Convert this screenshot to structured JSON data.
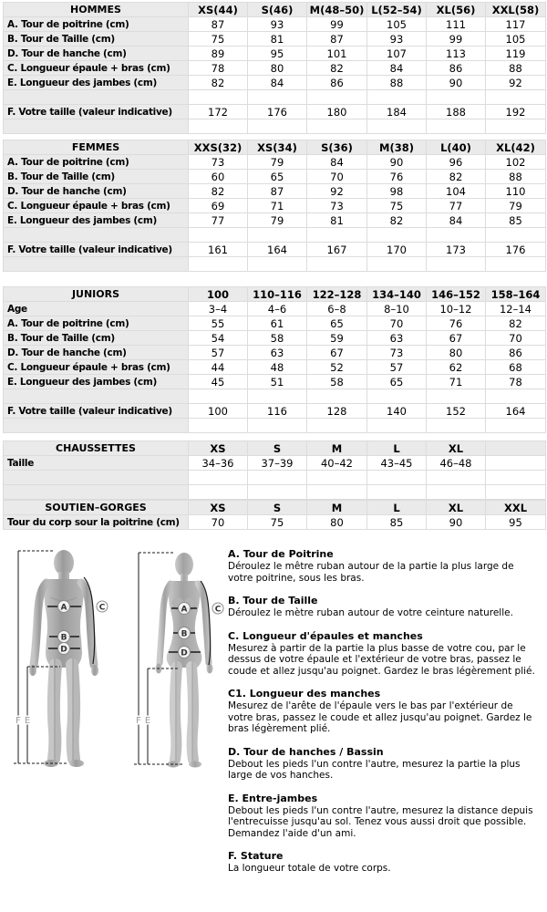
{
  "colors": {
    "header_bg": "#eaeaea",
    "border": "#dcdcdc",
    "text": "#000000"
  },
  "tables": [
    {
      "id": "hommes",
      "header": [
        "HOMMES",
        "XS(44)",
        "S(46)",
        "M(48–50)",
        "L(52–54)",
        "XL(56)",
        "XXL(58)"
      ],
      "rows": [
        {
          "label": "A. Tour de poitrine (cm)",
          "values": [
            "87",
            "93",
            "99",
            "105",
            "111",
            "117"
          ]
        },
        {
          "label": "B. Tour de Taille (cm)",
          "values": [
            "75",
            "81",
            "87",
            "93",
            "99",
            "105"
          ]
        },
        {
          "label": "D. Tour de hanche (cm)",
          "values": [
            "89",
            "95",
            "101",
            "107",
            "113",
            "119"
          ]
        },
        {
          "label": "C. Longueur épaule + bras (cm)",
          "values": [
            "78",
            "80",
            "82",
            "84",
            "86",
            "88"
          ]
        },
        {
          "label": "E. Longueur des jambes (cm)",
          "values": [
            "82",
            "84",
            "86",
            "88",
            "90",
            "92"
          ]
        },
        {
          "label": "",
          "values": [
            "",
            "",
            "",
            "",
            "",
            ""
          ]
        },
        {
          "label": "F. Votre taille (valeur indicative)",
          "values": [
            "172",
            "176",
            "180",
            "184",
            "188",
            "192"
          ]
        },
        {
          "label": "",
          "values": [
            "",
            "",
            "",
            "",
            "",
            ""
          ]
        }
      ]
    },
    {
      "id": "femmes",
      "header": [
        "FEMMES",
        "XXS(32)",
        "XS(34)",
        "S(36)",
        "M(38)",
        "L(40)",
        "XL(42)"
      ],
      "rows": [
        {
          "label": "A. Tour de poitrine (cm)",
          "values": [
            "73",
            "79",
            "84",
            "90",
            "96",
            "102"
          ]
        },
        {
          "label": "B. Tour de Taille (cm)",
          "values": [
            "60",
            "65",
            "70",
            "76",
            "82",
            "88"
          ]
        },
        {
          "label": "D. Tour de hanche (cm)",
          "values": [
            "82",
            "87",
            "92",
            "98",
            "104",
            "110"
          ]
        },
        {
          "label": "C. Longueur épaule + bras (cm)",
          "values": [
            "69",
            "71",
            "73",
            "75",
            "77",
            "79"
          ]
        },
        {
          "label": "E. Longueur des jambes (cm)",
          "values": [
            "77",
            "79",
            "81",
            "82",
            "84",
            "85"
          ]
        },
        {
          "label": "",
          "values": [
            "",
            "",
            "",
            "",
            "",
            ""
          ]
        },
        {
          "label": "F. Votre taille (valeur indicative)",
          "values": [
            "161",
            "164",
            "167",
            "170",
            "173",
            "176"
          ]
        },
        {
          "label": "",
          "values": [
            "",
            "",
            "",
            "",
            "",
            ""
          ]
        }
      ]
    },
    {
      "id": "juniors",
      "header": [
        "JUNIORS",
        "100",
        "110–116",
        "122–128",
        "134–140",
        "146–152",
        "158–164"
      ],
      "rows": [
        {
          "label": "Age",
          "values": [
            "3–4",
            "4–6",
            "6–8",
            "8–10",
            "10–12",
            "12–14"
          ]
        },
        {
          "label": "A. Tour de poitrine (cm)",
          "values": [
            "55",
            "61",
            "65",
            "70",
            "76",
            "82"
          ]
        },
        {
          "label": "B. Tour de Taille (cm)",
          "values": [
            "54",
            "58",
            "59",
            "63",
            "67",
            "70"
          ]
        },
        {
          "label": "D. Tour de hanche (cm)",
          "values": [
            "57",
            "63",
            "67",
            "73",
            "80",
            "86"
          ]
        },
        {
          "label": "C. Longueur épaule + bras (cm)",
          "values": [
            "44",
            "48",
            "52",
            "57",
            "62",
            "68"
          ]
        },
        {
          "label": "E. Longueur des jambes (cm)",
          "values": [
            "45",
            "51",
            "58",
            "65",
            "71",
            "78"
          ]
        },
        {
          "label": "",
          "values": [
            "",
            "",
            "",
            "",
            "",
            ""
          ]
        },
        {
          "label": "F. Votre taille (valeur indicative)",
          "values": [
            "100",
            "116",
            "128",
            "140",
            "152",
            "164"
          ]
        },
        {
          "label": "",
          "values": [
            "",
            "",
            "",
            "",
            "",
            ""
          ]
        }
      ]
    },
    {
      "id": "chaussettes",
      "header": [
        "CHAUSSETTES",
        "XS",
        "S",
        "M",
        "L",
        "XL",
        ""
      ],
      "rows": [
        {
          "label": "Taille",
          "values": [
            "34–36",
            "37–39",
            "40–42",
            "43–45",
            "46–48",
            ""
          ]
        },
        {
          "label": "",
          "values": [
            "",
            "",
            "",
            "",
            "",
            ""
          ]
        },
        {
          "label": "",
          "values": [
            "",
            "",
            "",
            "",
            "",
            ""
          ]
        }
      ]
    },
    {
      "id": "soutien_gorges",
      "header": [
        "SOUTIEN–GORGES",
        "XS",
        "S",
        "M",
        "L",
        "XL",
        "XXL"
      ],
      "rows": [
        {
          "label": "Tour du corp sour la poitrine (cm)",
          "values": [
            "70",
            "75",
            "80",
            "85",
            "90",
            "95"
          ]
        }
      ]
    }
  ],
  "instructions": [
    {
      "heading": "A. Tour de Poitrine",
      "body": "Déroulez le mêtre ruban autour de la partie la plus large de votre poitrine, sous les bras."
    },
    {
      "heading": "B. Tour de Taille",
      "body": "Déroulez le mètre ruban autour de votre ceinture naturelle."
    },
    {
      "heading": "C. Longueur d'épaules et manches",
      "body": "Mesurez à partir de la partie la plus basse de votre cou, par le dessus de votre épaule et l'extérieur de votre bras, passez le coude et allez jusqu'au poignet. Gardez le bras légèrement plié."
    },
    {
      "heading": "C1. Longueur des manches",
      "body": "Mesurez de l'arête de l'épaule vers le bas par l'extérieur de votre bras, passez le coude et allez jusqu'au poignet. Gardez le bras légèrement plié."
    },
    {
      "heading": "D. Tour de hanches / Bassin",
      "body": "Debout les pieds l'un contre l'autre, mesurez la partie la plus large de vos hanches."
    },
    {
      "heading": "E. Entre-jambes",
      "body": "Debout les pieds l'un contre l'autre, mesurez la distance depuis l'entrecuisse jusqu'au sol. Tenez vous aussi droit que possible. Demandez l'aide d'un ami."
    },
    {
      "heading": "F. Stature",
      "body": "La longueur totale de votre corps."
    }
  ],
  "figure_labels": {
    "chest": "A",
    "waist": "B",
    "hips": "D",
    "sleeve": "C",
    "stature": "F",
    "inseam": "E"
  }
}
